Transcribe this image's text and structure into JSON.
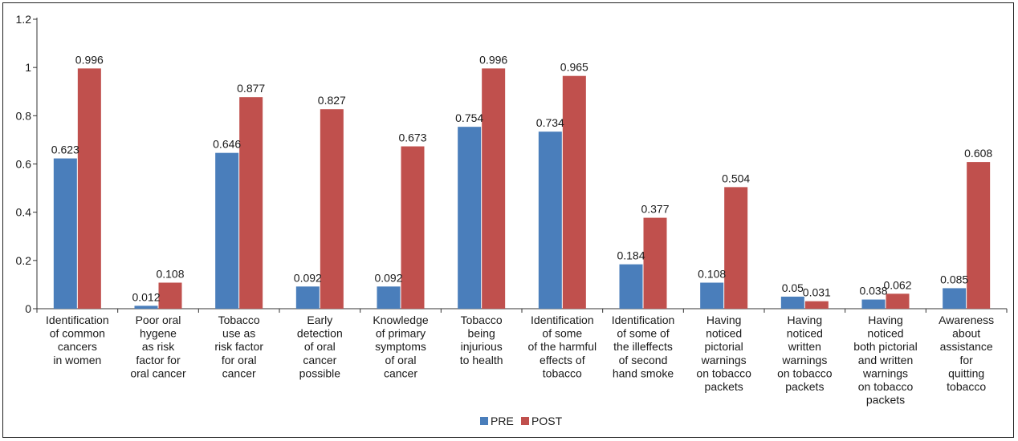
{
  "chart_data": {
    "type": "bar",
    "title": "",
    "xlabel": "",
    "ylabel": "",
    "ylim": [
      0,
      1.2
    ],
    "yticks": [
      "0",
      "0.2",
      "0.4",
      "0.6",
      "0.8",
      "1",
      "1.2"
    ],
    "ytick_values": [
      0,
      0.2,
      0.4,
      0.6,
      0.8,
      1.0,
      1.2
    ],
    "grid": false,
    "legend_position": "bottom-center",
    "categories": [
      [
        "Identification",
        "of common",
        "cancers",
        "in women"
      ],
      [
        "Poor oral",
        "hygene",
        "as risk",
        "factor for",
        "oral cancer"
      ],
      [
        "Tobacco",
        "use as",
        "risk factor",
        "for oral",
        "cancer"
      ],
      [
        "Early",
        "detection",
        "of oral",
        "cancer",
        "possible"
      ],
      [
        "Knowledge",
        "of primary",
        "symptoms",
        "of oral",
        "cancer"
      ],
      [
        "Tobacco",
        "being",
        "injurious",
        "to health"
      ],
      [
        "Identification",
        "of some",
        "of the harmful",
        "effects of",
        "tobacco"
      ],
      [
        "Identification",
        "of some of",
        "the illeffects",
        "of second",
        "hand smoke"
      ],
      [
        "Having",
        "noticed",
        "pictorial",
        "warnings",
        "on tobacco",
        "packets"
      ],
      [
        "Having",
        "noticed",
        "written",
        "warnings",
        "on tobacco",
        "packets"
      ],
      [
        "Having",
        "noticed",
        "both pictorial",
        "and written",
        "warnings",
        "on tobacco",
        "packets"
      ],
      [
        "Awareness",
        "about",
        "assistance",
        "for",
        "quitting",
        "tobacco"
      ]
    ],
    "series": [
      {
        "name": "PRE",
        "color": "#4a7ebb",
        "values": [
          0.623,
          0.012,
          0.646,
          0.092,
          0.092,
          0.754,
          0.734,
          0.184,
          0.108,
          0.05,
          0.038,
          0.085
        ],
        "labels": [
          "0.623",
          "0.012",
          "0.646",
          "0.092",
          "0.092",
          "0.754",
          "0.734",
          "0.184",
          "0.108",
          "0.05",
          "0.038",
          "0.085"
        ]
      },
      {
        "name": "POST",
        "color": "#c0504d",
        "values": [
          0.996,
          0.108,
          0.877,
          0.827,
          0.673,
          0.996,
          0.965,
          0.377,
          0.504,
          0.031,
          0.062,
          0.608
        ],
        "labels": [
          "0.996",
          "0.108",
          "0.877",
          "0.827",
          "0.673",
          "0.996",
          "0.965",
          "0.377",
          "0.504",
          "0.031",
          "0.062",
          "0.608"
        ]
      }
    ]
  }
}
